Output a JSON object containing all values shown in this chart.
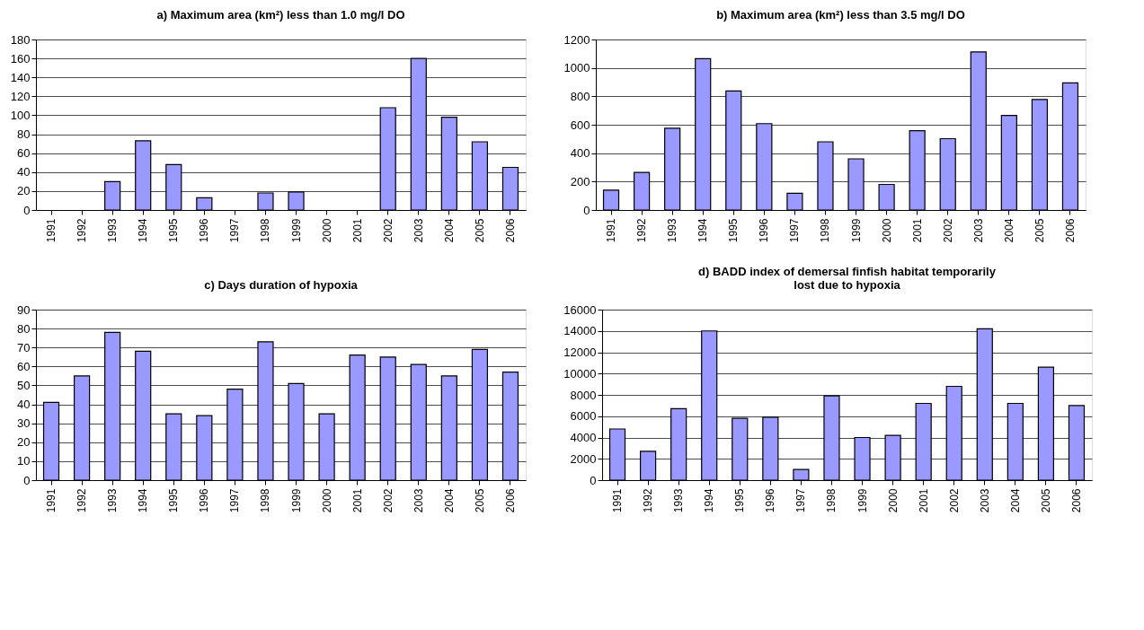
{
  "chart_data": [
    {
      "type": "bar",
      "title": "a) Maximum area (km²) less than 1.0 mg/l DO",
      "categories": [
        "1991",
        "1992",
        "1993",
        "1994",
        "1995",
        "1996",
        "1997",
        "1998",
        "1999",
        "2000",
        "2001",
        "2002",
        "2003",
        "2004",
        "2005",
        "2006"
      ],
      "values": [
        null,
        null,
        30,
        73,
        48,
        13,
        null,
        18,
        19,
        null,
        null,
        108,
        160,
        98,
        72,
        45
      ],
      "color": "#9999ff",
      "ylim": [
        0,
        180
      ],
      "yticks": [
        0,
        20,
        40,
        60,
        80,
        100,
        120,
        140,
        160,
        180
      ],
      "grid": "y"
    },
    {
      "type": "bar",
      "title": "b) Maximum area (km²)  less than 3.5 mg/l DO",
      "categories": [
        "1991",
        "1992",
        "1993",
        "1994",
        "1995",
        "1996",
        "1997",
        "1998",
        "1999",
        "2000",
        "2001",
        "2002",
        "2003",
        "2004",
        "2005",
        "2006"
      ],
      "values": [
        140,
        265,
        575,
        1065,
        838,
        608,
        118,
        480,
        360,
        180,
        558,
        502,
        1113,
        665,
        778,
        895
      ],
      "color": "#9999ff",
      "ylim": [
        0,
        1200
      ],
      "yticks": [
        0,
        200,
        400,
        600,
        800,
        1000,
        1200
      ],
      "grid": "y"
    },
    {
      "type": "bar",
      "title": "c) Days duration of hypoxia",
      "categories": [
        "1991",
        "1992",
        "1993",
        "1994",
        "1995",
        "1996",
        "1997",
        "1998",
        "1999",
        "2000",
        "2001",
        "2002",
        "2003",
        "2004",
        "2005",
        "2006"
      ],
      "values": [
        41,
        55,
        78,
        68,
        35,
        34,
        48,
        73,
        51,
        35,
        66,
        65,
        61,
        55,
        69,
        57
      ],
      "color": "#9999ff",
      "ylim": [
        0,
        90
      ],
      "yticks": [
        0,
        10,
        20,
        30,
        40,
        50,
        60,
        70,
        80,
        90
      ],
      "grid": "y"
    },
    {
      "type": "bar",
      "title": "d) BADD index of demersal finfish habitat temporarily\nlost due to hypoxia",
      "categories": [
        "1991",
        "1992",
        "1993",
        "1994",
        "1995",
        "1996",
        "1997",
        "1998",
        "1999",
        "2000",
        "2001",
        "2002",
        "2003",
        "2004",
        "2005",
        "2006"
      ],
      "values": [
        4800,
        2700,
        6700,
        14000,
        5800,
        5900,
        1000,
        7900,
        4000,
        4200,
        7200,
        8800,
        14200,
        7200,
        10600,
        7000
      ],
      "color": "#9999ff",
      "ylim": [
        0,
        16000
      ],
      "yticks": [
        0,
        2000,
        4000,
        6000,
        8000,
        10000,
        12000,
        14000,
        16000
      ],
      "grid": "y"
    }
  ]
}
